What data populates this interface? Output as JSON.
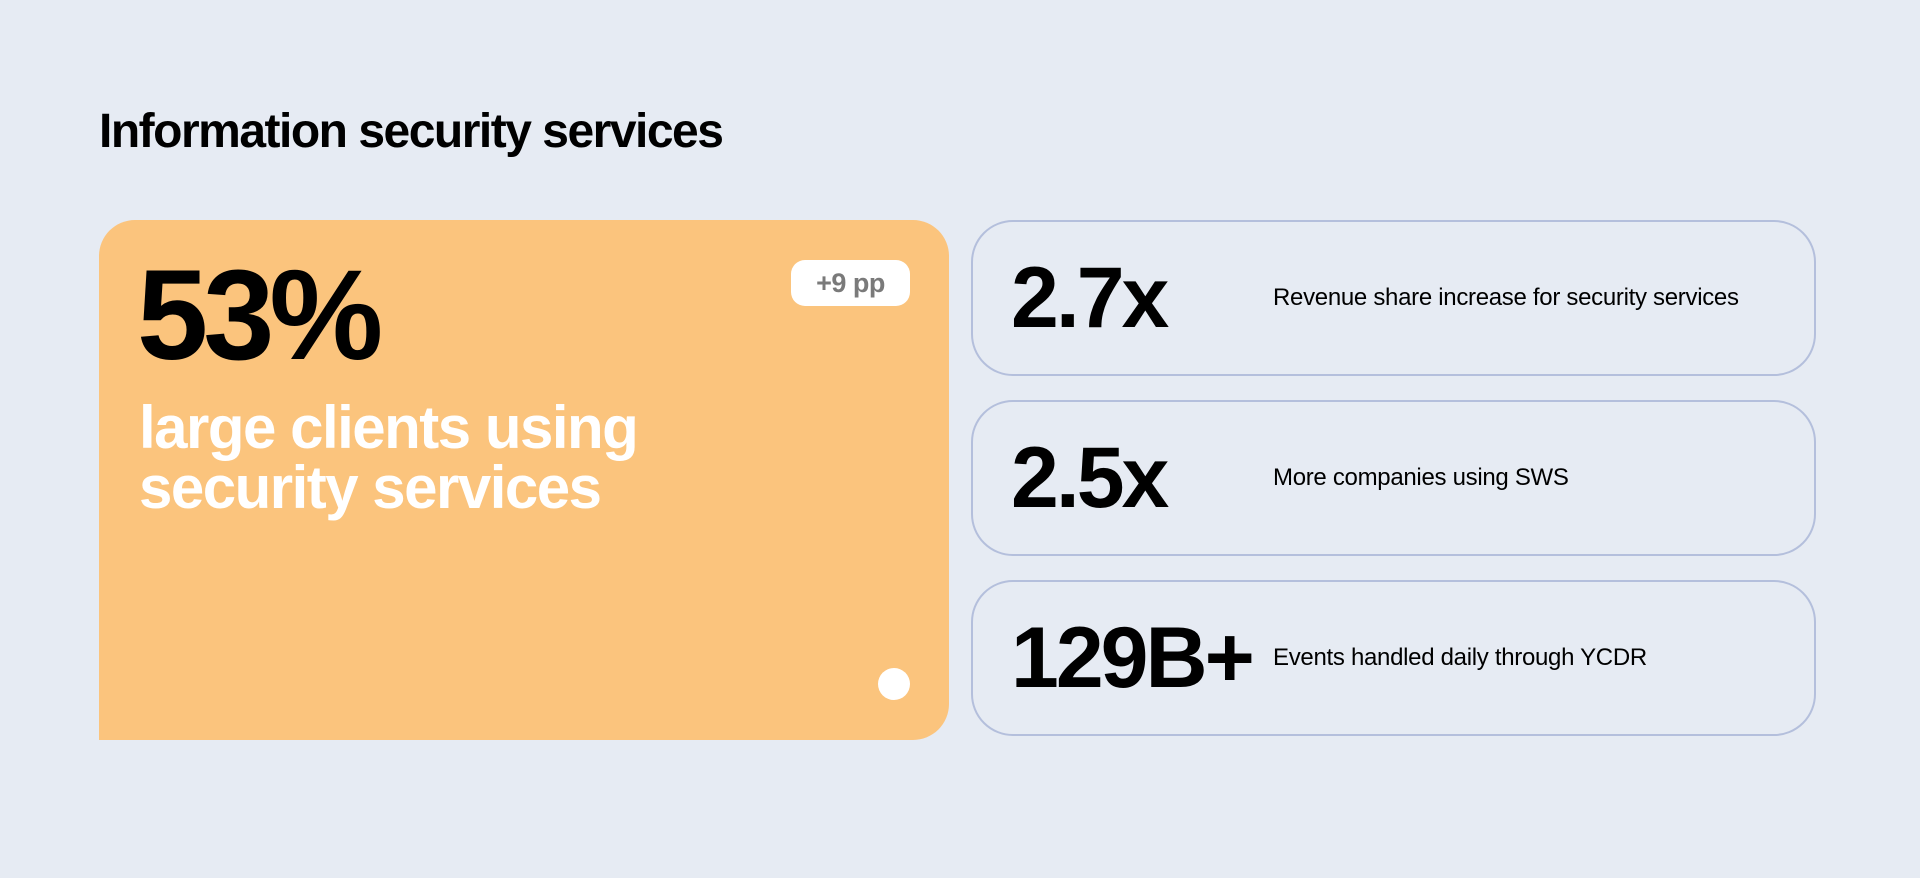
{
  "header": {
    "title": "Information security services"
  },
  "highlight": {
    "value": "53%",
    "description": "large clients using security services",
    "badge": "+9 pp"
  },
  "stats": [
    {
      "value": "2.7x",
      "label": "Revenue share increase for security services"
    },
    {
      "value": "2.5x",
      "label": "More companies using SWS"
    },
    {
      "value": "129B+",
      "label": "Events handled daily through YCDR"
    }
  ]
}
